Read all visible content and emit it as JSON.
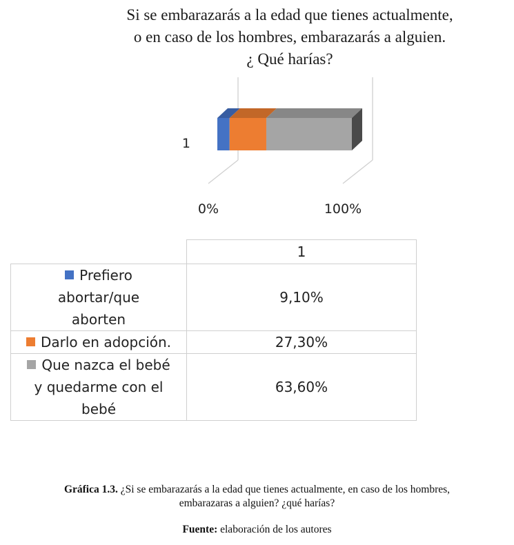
{
  "chart_data": {
    "type": "bar",
    "orientation": "horizontal",
    "stacked": true,
    "percent_stacked": true,
    "three_d": true,
    "title_lines": [
      "Si se embarazarás a la edad que tienes actualmente,",
      "o en caso de los hombres, embarazarás a alguien.",
      "¿ Qué harías?"
    ],
    "categories": [
      "1"
    ],
    "x_ticks": [
      "0%",
      "100%"
    ],
    "xlim": [
      0,
      100
    ],
    "series": [
      {
        "name": "Prefiero abortar/que aborten",
        "values": [
          9.1
        ],
        "label": "9,10%",
        "color": "#4472c4",
        "label_lines": [
          "Prefiero",
          "abortar/que",
          "aborten"
        ]
      },
      {
        "name": "Darlo en adopción.",
        "values": [
          27.3
        ],
        "label": "27,30%",
        "color": "#ed7d31",
        "label_lines": [
          "Darlo en adopción."
        ]
      },
      {
        "name": "Que nazca el bebé y quedarme con el bebé",
        "values": [
          63.6
        ],
        "label": "63,60%",
        "color": "#a5a5a5",
        "label_lines": [
          "Que nazca el bebé",
          "y quedarme con el",
          "bebé"
        ]
      }
    ],
    "table_header": "1",
    "legend": "table-below"
  },
  "caption": {
    "label": "Gráfica 1.3.",
    "line1": "¿Si se embarazarás a la edad que tienes actualmente, en caso de los hombres,",
    "line2": "embarazaras a alguien?  ¿qué harías?"
  },
  "source": {
    "label": "Fuente:",
    "text": "elaboración de los autores"
  }
}
